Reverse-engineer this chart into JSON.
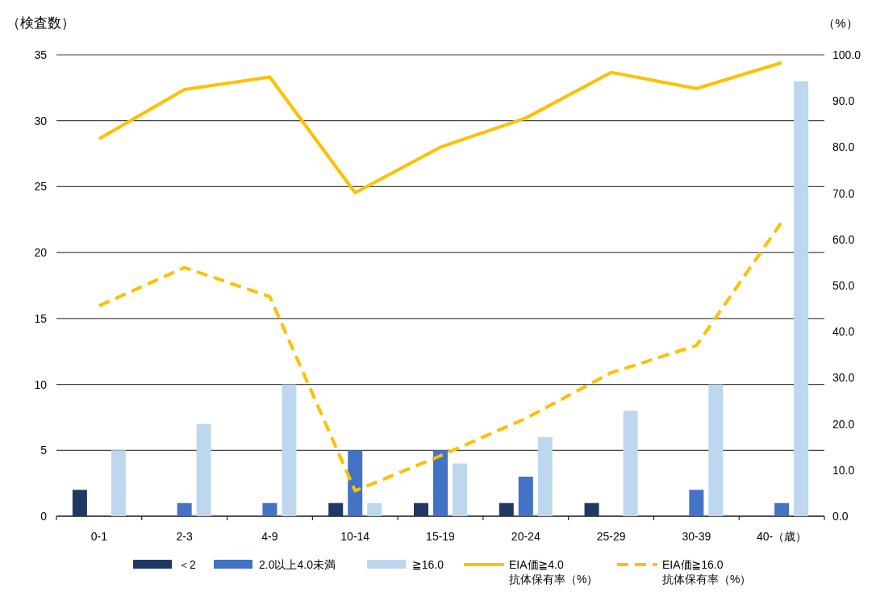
{
  "chart_data": {
    "type": "bar",
    "ylabel": "（検査数）",
    "y2label": "（%）",
    "categories": [
      "0-1",
      "2-3",
      "4-9",
      "10-14",
      "15-19",
      "20-24",
      "25-29",
      "30-39",
      "40-（歳）"
    ],
    "ylim": [
      0,
      35
    ],
    "yticks": [
      0,
      5,
      10,
      15,
      20,
      25,
      30,
      35
    ],
    "y2lim": [
      0,
      100
    ],
    "y2ticks": [
      {
        "value": 0,
        "label": "0.0"
      },
      {
        "value": 10,
        "label": "10.0"
      },
      {
        "value": 20,
        "label": "20.0"
      },
      {
        "value": 30,
        "label": "30.0"
      },
      {
        "value": 40,
        "label": "40.0"
      },
      {
        "value": 50,
        "label": "50.0"
      },
      {
        "value": 60,
        "label": "60.0"
      },
      {
        "value": 70,
        "label": "70.0"
      },
      {
        "value": 80,
        "label": "80.0"
      },
      {
        "value": 90,
        "label": "90.0"
      },
      {
        "value": 100,
        "label": "100.0"
      }
    ],
    "grid": "y",
    "legend": "bottom",
    "series": [
      {
        "name": "＜2",
        "color": "#203864",
        "values": [
          2,
          0,
          0,
          1,
          1,
          1,
          1,
          0,
          0
        ]
      },
      {
        "name": "2.0以上4.0未満",
        "color": "#4472c4",
        "values": [
          0,
          1,
          1,
          5,
          5,
          3,
          0,
          2,
          1
        ]
      },
      {
        "name": "≧16.0",
        "color": "#bdd7ee",
        "values": [
          5,
          7,
          10,
          1,
          4,
          6,
          8,
          10,
          33
        ]
      },
      {
        "name": "EIA価≧4.0\n抗体保有率（%）",
        "type": "line",
        "axis": "y2",
        "line_style": "solid",
        "color": "#ffc000",
        "values": [
          81.8,
          92.5,
          95.2,
          70.1,
          80.0,
          86.3,
          96.2,
          92.7,
          98.3
        ]
      },
      {
        "name": "EIA価≧16.0\n抗体保有率（%）",
        "type": "line",
        "axis": "y2",
        "line_style": "dashed",
        "color": "#ffc000",
        "values": [
          45.6,
          53.9,
          47.6,
          5.5,
          13.1,
          21.2,
          31.1,
          37.0,
          63.8
        ]
      }
    ]
  }
}
